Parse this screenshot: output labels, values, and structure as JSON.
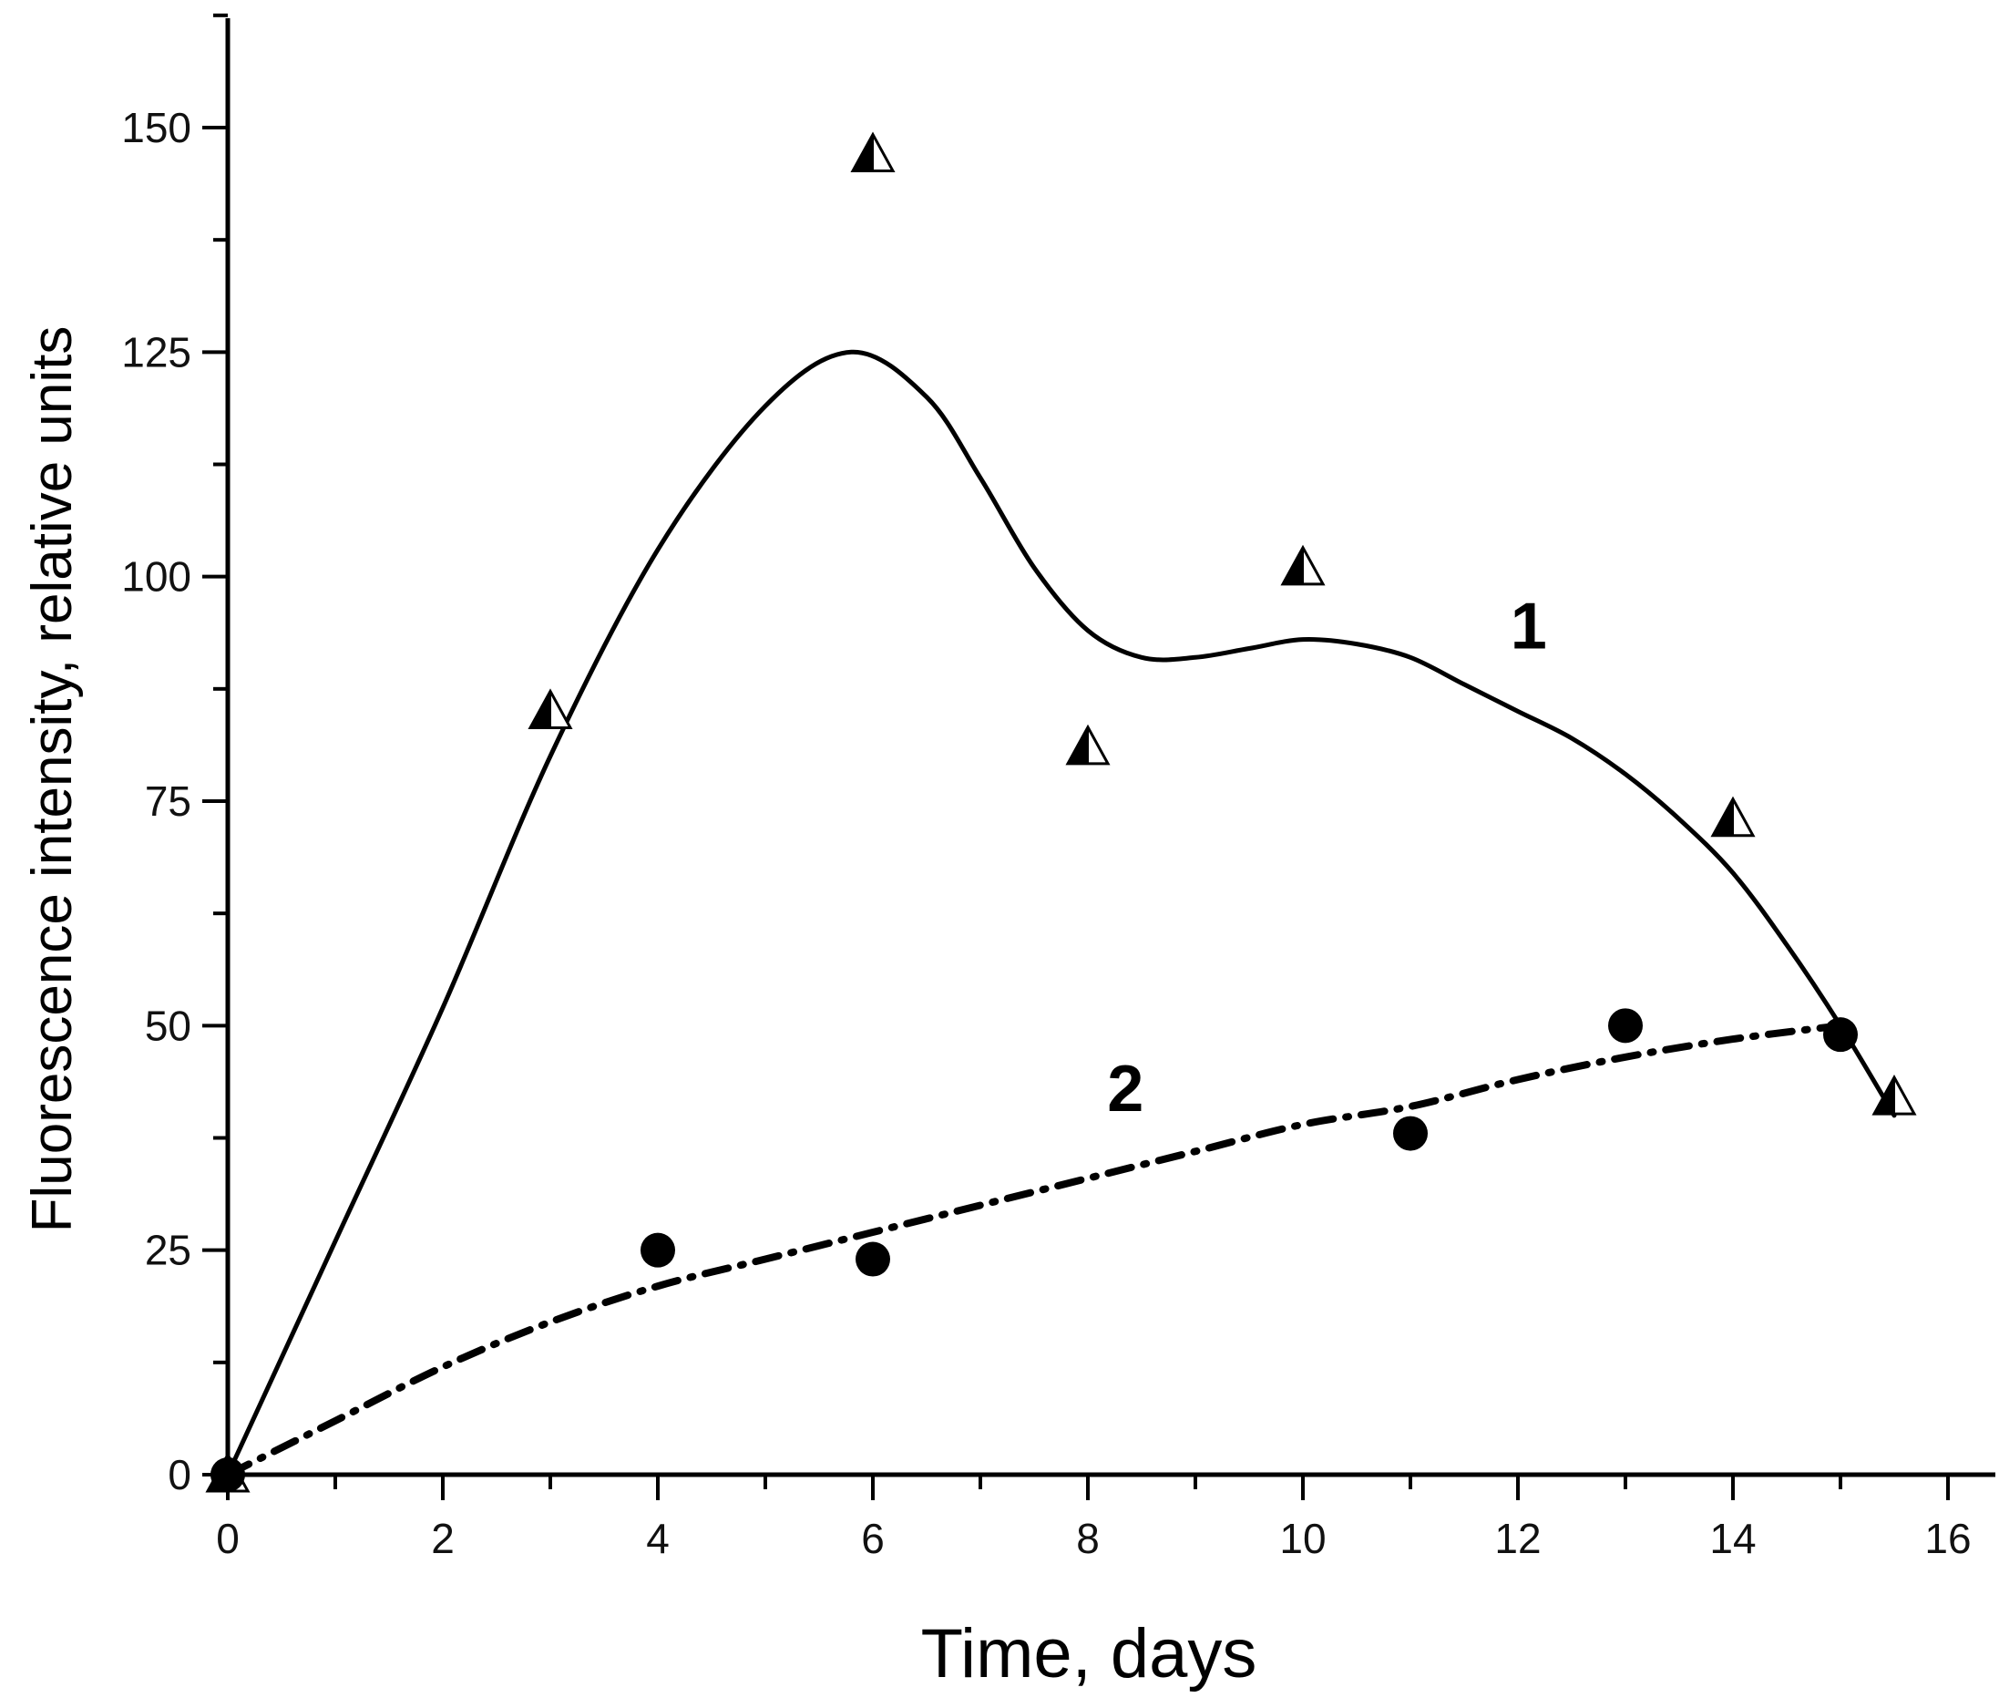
{
  "chart_data": {
    "type": "scatter",
    "title": "",
    "xlabel": "Time, days",
    "ylabel": "Fluorescence intensity, relative units",
    "xlim": [
      0,
      16.4
    ],
    "ylim": [
      0,
      163
    ],
    "x_ticks": [
      "0",
      "2",
      "4",
      "6",
      "8",
      "10",
      "12",
      "14",
      "16"
    ],
    "y_ticks": [
      "0",
      "25",
      "50",
      "75",
      "100",
      "125",
      "150"
    ],
    "series": [
      {
        "name": "1",
        "marker": "triangle",
        "points": [
          {
            "x": 0,
            "y": 0
          },
          {
            "x": 3,
            "y": 85
          },
          {
            "x": 6,
            "y": 147
          },
          {
            "x": 8,
            "y": 81
          },
          {
            "x": 10,
            "y": 101
          },
          {
            "x": 14,
            "y": 73
          },
          {
            "x": 15.5,
            "y": 42
          }
        ],
        "fit": {
          "style": "solid",
          "x": [
            0,
            1,
            2,
            3,
            4,
            5,
            5.8,
            6.5,
            7,
            7.5,
            8,
            8.5,
            9,
            9.5,
            10,
            10.5,
            11,
            11.5,
            12,
            12.5,
            13,
            13.5,
            14,
            14.5,
            15,
            15.5
          ],
          "y": [
            0,
            26,
            52,
            80,
            103,
            119,
            125,
            120,
            111,
            101,
            94,
            91,
            91,
            92,
            93,
            92.5,
            91,
            88,
            85,
            82,
            78,
            73,
            67,
            59,
            50,
            40
          ]
        }
      },
      {
        "name": "2",
        "marker": "circle",
        "points": [
          {
            "x": 0,
            "y": 0
          },
          {
            "x": 4,
            "y": 25
          },
          {
            "x": 6,
            "y": 24
          },
          {
            "x": 11,
            "y": 38
          },
          {
            "x": 13,
            "y": 50
          },
          {
            "x": 15,
            "y": 49
          }
        ],
        "fit": {
          "style": "dash-dot",
          "x": [
            0,
            1,
            2,
            3,
            4,
            5,
            6,
            7,
            8,
            9,
            10,
            11,
            12,
            13,
            14,
            15
          ],
          "y": [
            0,
            6,
            12,
            17,
            21,
            24,
            27,
            30,
            33,
            36,
            39,
            41,
            44,
            46.5,
            48.5,
            50
          ]
        }
      }
    ],
    "curve_labels": [
      {
        "text": "1",
        "x": 12.1,
        "y": 92
      },
      {
        "text": "2",
        "x": 8.35,
        "y": 40.5
      }
    ]
  }
}
